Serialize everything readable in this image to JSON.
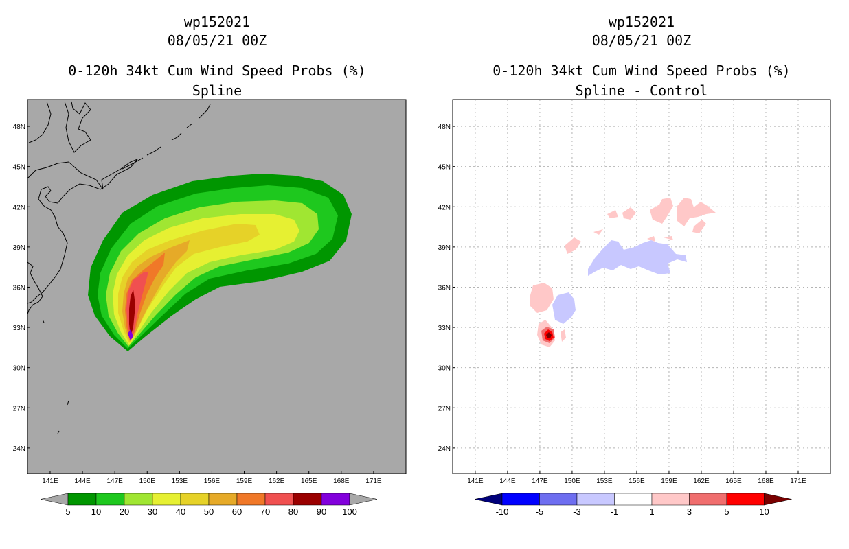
{
  "left": {
    "storm": "wp152021",
    "date": "08/05/21 00Z",
    "title": "0-120h 34kt Cum Wind Speed Probs (%)",
    "subtitle": "Spline"
  },
  "right": {
    "storm": "wp152021",
    "date": "08/05/21 00Z",
    "title": "0-120h 34kt Cum Wind Speed Probs (%)",
    "subtitle": "Spline - Control"
  },
  "axes": {
    "lon_labels": [
      "141E",
      "144E",
      "147E",
      "150E",
      "153E",
      "156E",
      "159E",
      "162E",
      "165E",
      "168E",
      "171E"
    ],
    "lon_values": [
      141,
      144,
      147,
      150,
      153,
      156,
      159,
      162,
      165,
      168,
      171
    ],
    "lat_labels": [
      "48N",
      "45N",
      "42N",
      "39N",
      "36N",
      "33N",
      "30N",
      "27N",
      "24N"
    ],
    "lat_values": [
      48,
      45,
      42,
      39,
      36,
      33,
      30,
      27,
      24
    ],
    "lon_range": [
      138.9,
      174.0
    ],
    "lat_range": [
      22.1,
      50.0
    ]
  },
  "colorbars": {
    "left": {
      "labels": [
        "5",
        "10",
        "20",
        "30",
        "40",
        "50",
        "60",
        "70",
        "80",
        "90",
        "100"
      ],
      "colors": [
        "#009600",
        "#1ec81e",
        "#a0e632",
        "#e6f032",
        "#e6d228",
        "#e6aa28",
        "#f07828",
        "#f05050",
        "#9a0000",
        "#8200dc"
      ],
      "end_color": "#a8a8a8"
    },
    "right": {
      "labels": [
        "-10",
        "-5",
        "-3",
        "-1",
        "1",
        "3",
        "5",
        "10"
      ],
      "colors": [
        "#0000ff",
        "#6e6ef0",
        "#c8c8ff",
        "#ffffff",
        "#ffc8c8",
        "#f06e6e",
        "#ff0000"
      ],
      "low_end_color": "#00007a",
      "high_end_color": "#7a0000"
    }
  },
  "colors": {
    "land_bg_left": "#a8a8a8",
    "grid_right": "#b4b4b4"
  }
}
